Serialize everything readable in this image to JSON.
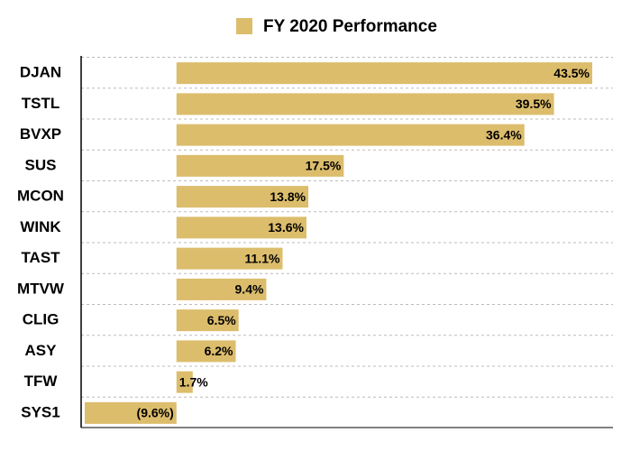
{
  "chart_data": {
    "type": "bar",
    "orientation": "horizontal",
    "categories": [
      "DJAN",
      "TSTL",
      "BVXP",
      "SUS",
      "MCON",
      "WINK",
      "TAST",
      "MTVW",
      "CLIG",
      "ASY",
      "TFW",
      "SYS1"
    ],
    "series": [
      {
        "name": "FY 2020 Performance",
        "color": "#dcbd6c",
        "values": [
          43.5,
          39.5,
          36.4,
          17.5,
          13.8,
          13.6,
          11.1,
          9.4,
          6.5,
          6.2,
          1.7,
          -9.6
        ],
        "value_labels": [
          "43.5%",
          "39.5%",
          "36.4%",
          "17.5%",
          "13.8%",
          "13.6%",
          "11.1%",
          "9.4%",
          "6.5%",
          "6.2%",
          "1.7%",
          "(9.6%)"
        ]
      }
    ],
    "grid": true,
    "legend": "top"
  }
}
